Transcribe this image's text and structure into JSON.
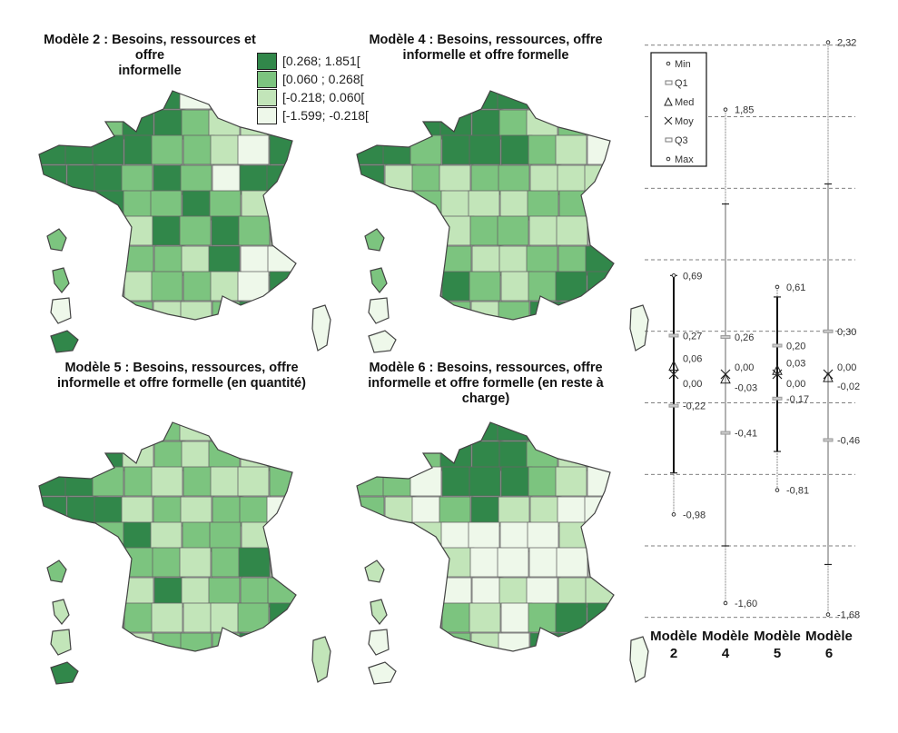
{
  "colors": {
    "class3": "#31874a",
    "class2": "#7cc47f",
    "class1": "#c2e5b9",
    "class0": "#eef8ea",
    "border": "#555555"
  },
  "legend": {
    "classes": [
      {
        "label": "[0.268; 1.851[",
        "color": "#31874a"
      },
      {
        "label": "[0.060 ; 0.268[",
        "color": "#7cc47f"
      },
      {
        "label": "[-0.218; 0.060[",
        "color": "#c2e5b9"
      },
      {
        "label": "[-1.599; -0.218[",
        "color": "#eef8ea"
      }
    ]
  },
  "maps": [
    {
      "title_line1": "Modèle 2 : Besoins, ressources et offre",
      "title_line2": "informelle",
      "levels": [
        "111330011",
        "112332112",
        "333322103",
        "333232033",
        "233223210",
        "122132321",
        "121221300",
        "212122103",
        "110211233"
      ],
      "islands": [
        2,
        2,
        0,
        3,
        0
      ]
    },
    {
      "title_line1": "Modèle 4 : Besoins, ressources, offre",
      "title_line2": "informelle et offre formelle",
      "levels": [
        "112333221",
        "213332120",
        "332333210",
        "312122111",
        "232111221",
        "321122110",
        "231211223",
        "012321233",
        "012212330"
      ],
      "islands": [
        2,
        2,
        0,
        0,
        0
      ]
    },
    {
      "title_line1": "Modèle 5 : Besoins, ressources, offre",
      "title_line2": "informelle et offre formelle (en quantité)",
      "levels": [
        "112221011",
        "223121212",
        "332212112",
        "333121220",
        "232312213",
        "123221231",
        "122131222",
        "212211123",
        "121122233"
      ],
      "islands": [
        2,
        1,
        1,
        3,
        1
      ]
    },
    {
      "title_line1": "Modèle 6 : Besoins, ressources, offre",
      "title_line2": "informelle et offre formelle (en reste à",
      "title_line3": "charge)",
      "levels": [
        "002333000",
        "112333211",
        "220333210",
        "210231100",
        "001000010",
        "320100000",
        "311001011",
        "021210233",
        "002210330"
      ],
      "islands": [
        1,
        1,
        0,
        0,
        0
      ]
    }
  ],
  "chart_data": {
    "type": "boxplot",
    "categories": [
      "Modèle 2",
      "Modèle 4",
      "Modèle 5",
      "Modèle 6"
    ],
    "category_lines": [
      [
        "Modèle",
        "2"
      ],
      [
        "Modèle",
        "4"
      ],
      [
        "Modèle",
        "5"
      ],
      [
        "Modèle",
        "6"
      ]
    ],
    "legend": [
      "Min",
      "Q1",
      "Med",
      "Moy",
      "Q3",
      "Max"
    ],
    "legend_placement": "top-left",
    "grid": true,
    "gridlines": [
      2.3,
      1.8,
      1.3,
      0.8,
      0.3,
      -0.2,
      -0.7,
      -1.2,
      -1.7
    ],
    "ylim": [
      -1.72,
      2.35
    ],
    "series": [
      {
        "min": -0.98,
        "q1": -0.22,
        "med": 0.06,
        "moy": 0.0,
        "q3": 0.27,
        "max": 0.69,
        "whisker": [
          -0.69,
          0.69
        ],
        "bold": true,
        "labels": {
          "min": "-0,98",
          "q1": "-0,22",
          "med": "0,06",
          "moy": "0,00",
          "q3": "0,27",
          "max": "0,69"
        }
      },
      {
        "min": -1.6,
        "q1": -0.41,
        "med": -0.03,
        "moy": 0.0,
        "q3": 0.26,
        "max": 1.85,
        "whisker": [
          -1.2,
          1.19
        ],
        "bold": false,
        "labels": {
          "min": "-1,60",
          "q1": "-0,41",
          "med": "-0,03",
          "moy": "0,00",
          "q3": "0,26",
          "max": "1,85"
        }
      },
      {
        "min": -0.81,
        "q1": -0.17,
        "med": 0.03,
        "moy": 0.0,
        "q3": 0.2,
        "max": 0.61,
        "whisker": [
          -0.54,
          0.54
        ],
        "bold": true,
        "labels": {
          "min": "-0,81",
          "q1": "-0,17",
          "med": "0,03",
          "moy": "0,00",
          "q3": "0,20",
          "max": "0,61"
        }
      },
      {
        "min": -1.68,
        "q1": -0.46,
        "med": -0.02,
        "moy": 0.0,
        "q3": 0.3,
        "max": 2.32,
        "whisker": [
          -1.33,
          1.33
        ],
        "bold": false,
        "labels": {
          "min": "-1,68",
          "q1": "-0,46",
          "med": "-0,02",
          "moy": "0,00",
          "q3": "0,30",
          "max": "2,32"
        }
      }
    ]
  }
}
